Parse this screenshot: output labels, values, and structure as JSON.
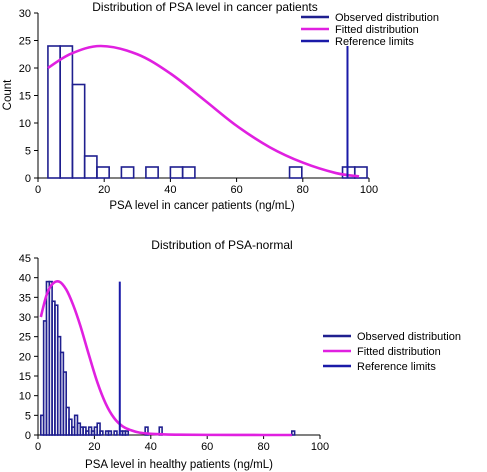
{
  "chart_data": [
    {
      "type": "histogram",
      "title": "Distribution of PSA level in cancer patients",
      "xlabel": "PSA level in cancer patients (ng/mL)",
      "ylabel": "Count",
      "xlim": [
        0,
        100
      ],
      "ylim": [
        0,
        30
      ],
      "xticks": [
        0,
        20,
        40,
        60,
        80,
        100
      ],
      "yticks": [
        0,
        5,
        10,
        15,
        20,
        25,
        30
      ],
      "grid": false,
      "legend": "top-right",
      "series": [
        {
          "name": "Observed distribution",
          "kind": "histogram",
          "color": "#1f1f8f",
          "bin_width": 3.7,
          "bins": [
            {
              "x0": 3.0,
              "count": 24
            },
            {
              "x0": 6.7,
              "count": 24
            },
            {
              "x0": 10.4,
              "count": 17
            },
            {
              "x0": 14.1,
              "count": 4
            },
            {
              "x0": 17.8,
              "count": 2
            },
            {
              "x0": 21.5,
              "count": 0
            },
            {
              "x0": 25.2,
              "count": 2
            },
            {
              "x0": 28.9,
              "count": 0
            },
            {
              "x0": 32.6,
              "count": 2
            },
            {
              "x0": 36.3,
              "count": 0
            },
            {
              "x0": 40.0,
              "count": 2
            },
            {
              "x0": 43.7,
              "count": 2
            },
            {
              "x0": 47.4,
              "count": 0
            },
            {
              "x0": 76.0,
              "count": 2
            },
            {
              "x0": 92.0,
              "count": 2
            },
            {
              "x0": 95.7,
              "count": 2
            }
          ]
        },
        {
          "name": "Fitted distribution",
          "kind": "curve",
          "color": "#e020e0",
          "x": [
            3,
            10,
            19,
            30,
            40,
            50,
            60,
            70,
            80,
            90,
            97
          ],
          "y": [
            20,
            22.6,
            24,
            22.5,
            19,
            14.3,
            9.5,
            5.6,
            2.8,
            0.9,
            0.3
          ]
        },
        {
          "name": "Reference limits",
          "kind": "vline",
          "color": "#1a1aa8",
          "x": [
            93.5
          ],
          "y_top": 24
        }
      ]
    },
    {
      "type": "histogram",
      "title": "Distribution of PSA-normal",
      "xlabel": "PSA level in healthy patients (ng/mL)",
      "ylabel": "",
      "xlim": [
        0,
        100
      ],
      "ylim": [
        0,
        45
      ],
      "xticks": [
        0,
        20,
        40,
        60,
        80,
        100
      ],
      "yticks": [
        0,
        5,
        10,
        15,
        20,
        25,
        30,
        35,
        40,
        45
      ],
      "grid": false,
      "legend": "right",
      "series": [
        {
          "name": "Observed distribution",
          "kind": "histogram",
          "color": "#1f1f8f",
          "bin_width": 1.0,
          "bins": [
            {
              "x0": 1,
              "count": 5
            },
            {
              "x0": 2,
              "count": 29
            },
            {
              "x0": 3,
              "count": 39
            },
            {
              "x0": 4,
              "count": 39
            },
            {
              "x0": 5,
              "count": 34
            },
            {
              "x0": 6,
              "count": 33
            },
            {
              "x0": 7,
              "count": 25
            },
            {
              "x0": 8,
              "count": 21
            },
            {
              "x0": 9,
              "count": 16
            },
            {
              "x0": 10,
              "count": 7
            },
            {
              "x0": 11,
              "count": 4
            },
            {
              "x0": 12,
              "count": 2
            },
            {
              "x0": 13,
              "count": 5
            },
            {
              "x0": 14,
              "count": 3
            },
            {
              "x0": 15,
              "count": 2
            },
            {
              "x0": 16,
              "count": 2
            },
            {
              "x0": 17,
              "count": 1
            },
            {
              "x0": 18,
              "count": 2
            },
            {
              "x0": 19,
              "count": 1
            },
            {
              "x0": 20,
              "count": 2
            },
            {
              "x0": 21,
              "count": 3
            },
            {
              "x0": 22,
              "count": 1
            },
            {
              "x0": 24,
              "count": 1
            },
            {
              "x0": 25,
              "count": 1
            },
            {
              "x0": 27,
              "count": 1
            },
            {
              "x0": 29,
              "count": 1
            },
            {
              "x0": 30,
              "count": 1
            },
            {
              "x0": 31,
              "count": 1
            },
            {
              "x0": 38,
              "count": 2
            },
            {
              "x0": 43,
              "count": 2
            },
            {
              "x0": 90,
              "count": 1
            }
          ]
        },
        {
          "name": "Fitted distribution",
          "kind": "curve",
          "color": "#e020e0",
          "x": [
            1,
            3,
            5,
            7.5,
            10,
            12.5,
            15,
            18,
            21,
            24,
            27,
            30,
            33,
            36,
            40,
            45,
            50,
            60,
            80,
            90
          ],
          "y": [
            30,
            35.5,
            38.3,
            39,
            37,
            33,
            27.8,
            20.5,
            13.5,
            8,
            4.3,
            2.2,
            1.2,
            0.6,
            0.3,
            0.15,
            0.08,
            0.03,
            0,
            0
          ]
        },
        {
          "name": "Reference limits",
          "kind": "vline",
          "color": "#1a1aa8",
          "x": [
            29
          ],
          "y_top": 39
        }
      ]
    }
  ]
}
